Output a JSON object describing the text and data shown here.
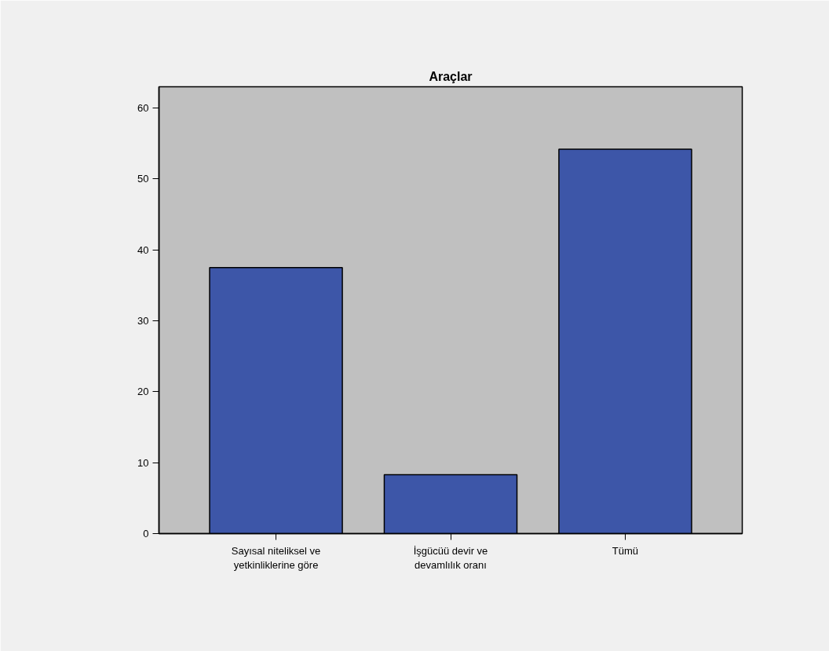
{
  "chart_data": {
    "type": "bar",
    "title": "Araçlar",
    "categories": [
      "Sayısal niteliksel ve yetkinliklerine göre",
      "İşgücüü devir ve devamlılık oranı",
      "Tümü"
    ],
    "values": [
      37.5,
      8.3,
      54.2
    ],
    "color": "#3d56a8",
    "ylim": [
      0,
      63
    ],
    "yticks": [
      0,
      10,
      20,
      30,
      40,
      50,
      60
    ],
    "grid": false
  }
}
